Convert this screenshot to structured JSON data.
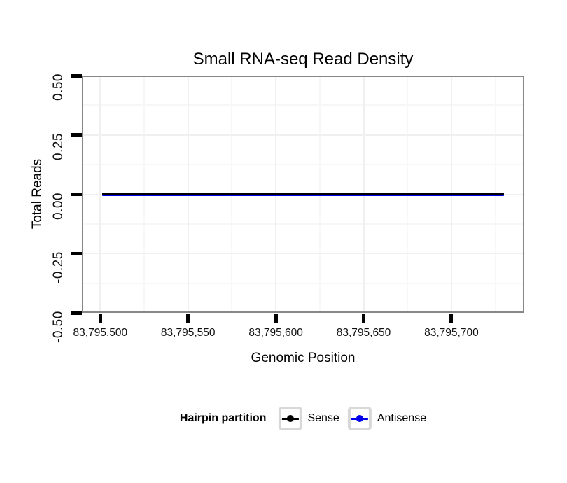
{
  "chart_data": {
    "type": "line",
    "title": "Small RNA-seq Read Density",
    "xlabel": "Genomic Position",
    "ylabel": "Total Reads",
    "xlim": [
      83795489.5,
      83795741.5
    ],
    "ylim": [
      -0.5,
      0.5
    ],
    "x_ticks": [
      {
        "value": 83795500,
        "label": "83,795,500"
      },
      {
        "value": 83795550,
        "label": "83,795,550"
      },
      {
        "value": 83795600,
        "label": "83,795,600"
      },
      {
        "value": 83795650,
        "label": "83,795,650"
      },
      {
        "value": 83795700,
        "label": "83,795,700"
      }
    ],
    "y_ticks": [
      {
        "value": 0.5,
        "label": "0.50"
      },
      {
        "value": 0.25,
        "label": "0.25"
      },
      {
        "value": 0,
        "label": "0.00"
      },
      {
        "value": -0.25,
        "label": "-0.25"
      },
      {
        "value": -0.5,
        "label": "-0.50"
      }
    ],
    "grid": {
      "shown": true,
      "major_color": "#f0f0f0",
      "minor_color": "#f7f7f7"
    },
    "series": [
      {
        "name": "Sense",
        "color": "#000000",
        "x_start": 83795501,
        "x_end": 83795730,
        "constant_value": 0
      },
      {
        "name": "Antisense",
        "color": "#0000EE",
        "x_start": 83795501,
        "x_end": 83795730,
        "constant_value": 0
      }
    ],
    "legend": {
      "title": "Hairpin partition",
      "position": "bottom",
      "entries": [
        {
          "label": "Sense",
          "color": "#000000"
        },
        {
          "label": "Antisense",
          "color": "#0000EE"
        }
      ]
    },
    "panel_border_color": "#878787"
  }
}
